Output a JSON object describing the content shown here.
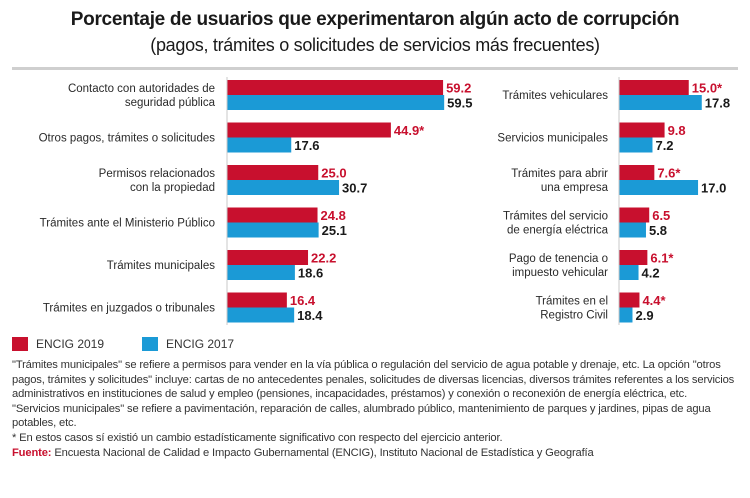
{
  "header": {
    "title": "Porcentaje de usuarios que experimentaron algún acto de corrupción",
    "subtitle": "(pagos, trámites o solicitudes de servicios más frecuentes)"
  },
  "colors": {
    "encig_2019": "#c8102e",
    "encig_2017": "#1b9ad6",
    "text_2019": "#c8102e",
    "text_2017": "#1a1a1a"
  },
  "chart_data": [
    {
      "type": "bar",
      "orientation": "horizontal",
      "title": "Porcentaje de usuarios que experimentaron algún acto de corrupción (pagos, trámites o solicitudes de servicios más frecuentes)",
      "xlabel": "",
      "ylabel": "",
      "xlim": [
        0,
        60
      ],
      "grid": false,
      "legend_position": "bottom-left",
      "categories": [
        [
          "Contacto con autoridades de",
          "seguridad pública"
        ],
        [
          "Otros pagos, trámites o solicitudes"
        ],
        [
          "Permisos relacionados",
          "con la propiedad"
        ],
        [
          "Trámites ante el Ministerio Público"
        ],
        [
          "Trámites municipales"
        ],
        [
          "Trámites en juzgados o tribunales"
        ]
      ],
      "series": [
        {
          "name": "ENCIG 2019",
          "values": [
            59.2,
            44.9,
            25.0,
            24.8,
            22.2,
            16.4
          ],
          "labels": [
            "59.2",
            "44.9*",
            "25.0",
            "24.8",
            "22.2",
            "16.4"
          ]
        },
        {
          "name": "ENCIG 2017",
          "values": [
            59.5,
            17.6,
            30.7,
            25.1,
            18.6,
            18.4
          ],
          "labels": [
            "59.5",
            "17.6",
            "30.7",
            "25.1",
            "18.6",
            "18.4"
          ]
        }
      ]
    },
    {
      "type": "bar",
      "orientation": "horizontal",
      "title": "",
      "xlabel": "",
      "ylabel": "",
      "xlim": [
        0,
        20
      ],
      "grid": false,
      "categories": [
        [
          "Trámites vehiculares"
        ],
        [
          "Servicios municipales"
        ],
        [
          "Trámites para abrir",
          "una empresa"
        ],
        [
          "Trámites del servicio",
          "de energía eléctrica"
        ],
        [
          "Pago de tenencia o",
          "impuesto vehicular"
        ],
        [
          "Trámites en el",
          "Registro Civil"
        ]
      ],
      "series": [
        {
          "name": "ENCIG 2019",
          "values": [
            15.0,
            9.8,
            7.6,
            6.5,
            6.1,
            4.4
          ],
          "labels": [
            "15.0*",
            "9.8",
            "7.6*",
            "6.5",
            "6.1*",
            "4.4*"
          ]
        },
        {
          "name": "ENCIG 2017",
          "values": [
            17.8,
            7.2,
            17.0,
            5.8,
            4.2,
            2.9
          ],
          "labels": [
            "17.8",
            "7.2",
            "17.0",
            "5.8",
            "4.2",
            "2.9"
          ]
        }
      ]
    }
  ],
  "legend": {
    "items": [
      {
        "label": "ENCIG 2019"
      },
      {
        "label": "ENCIG 2017"
      }
    ]
  },
  "notes": {
    "note1": "\"Trámites municipales\" se refiere a permisos para vender en la vía pública o regulación del servicio de agua potable y drenaje, etc. La opción \"otros pagos, trámites y solicitudes\" incluye: cartas de no antecedentes penales, solicitudes de diversas licencias, diversos trámites referentes a los servicios administrativos en instituciones de salud y empleo (pensiones, incapacidades, préstamos) y conexión o reconexión de energía eléctrica, etc.",
    "note2": "\"Servicios municipales\" se refiere a pavimentación, reparación de calles, alumbrado público, mantenimiento de parques y jardines, pipas de agua potables, etc.",
    "note3": "* En estos casos sí existió un cambio estadísticamente significativo con respecto del ejercicio anterior.",
    "source_label": "Fuente:",
    "source_text": " Encuesta Nacional de Calidad e Impacto Gubernamental (ENCIG), Instituto Nacional de Estadística y Geografía"
  }
}
